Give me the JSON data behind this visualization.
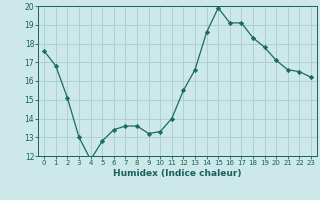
{
  "x": [
    0,
    1,
    2,
    3,
    4,
    5,
    6,
    7,
    8,
    9,
    10,
    11,
    12,
    13,
    14,
    15,
    16,
    17,
    18,
    19,
    20,
    21,
    22,
    23
  ],
  "y": [
    17.6,
    16.8,
    15.1,
    13.0,
    11.8,
    12.8,
    13.4,
    13.6,
    13.6,
    13.2,
    13.3,
    14.0,
    15.5,
    16.6,
    18.6,
    19.9,
    19.1,
    19.1,
    18.3,
    17.8,
    17.1,
    16.6,
    16.5,
    16.2
  ],
  "line_color": "#1a6b5e",
  "marker": "D",
  "marker_size": 2.2,
  "bg_color": "#cce8e8",
  "grid_color": "#aacccc",
  "xlabel": "Humidex (Indice chaleur)",
  "ylim": [
    12,
    20
  ],
  "xlim_min": -0.5,
  "xlim_max": 23.5,
  "yticks": [
    12,
    13,
    14,
    15,
    16,
    17,
    18,
    19,
    20
  ],
  "xticks": [
    0,
    1,
    2,
    3,
    4,
    5,
    6,
    7,
    8,
    9,
    10,
    11,
    12,
    13,
    14,
    15,
    16,
    17,
    18,
    19,
    20,
    21,
    22,
    23
  ],
  "label_color": "#1a5f5f",
  "tick_color": "#1a5f5f",
  "xtick_fontsize": 5.0,
  "ytick_fontsize": 5.5,
  "xlabel_fontsize": 6.5
}
